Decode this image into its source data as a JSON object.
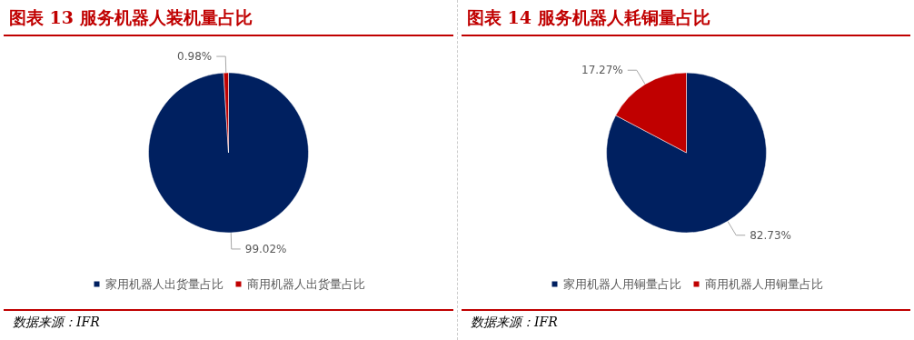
{
  "chart_data": [
    {
      "type": "pie",
      "title": "图表 13 服务机器人装机量占比",
      "categories": [
        "家用机器人出货量占比",
        "商用机器人出货量占比"
      ],
      "values": [
        99.02,
        0.98
      ],
      "colors": [
        "#002060",
        "#c00000"
      ],
      "value_labels": [
        "99.02%",
        "0.98%"
      ],
      "legend": "bottom",
      "annotations": [
        "数据来源：IFR"
      ]
    },
    {
      "type": "pie",
      "title": "图表 14 服务机器人耗铜量占比",
      "categories": [
        "家用机器人用铜量占比",
        "商用机器人用铜量占比"
      ],
      "values": [
        82.73,
        17.27
      ],
      "colors": [
        "#002060",
        "#c00000"
      ],
      "value_labels": [
        "82.73%",
        "17.27%"
      ],
      "legend": "bottom",
      "annotations": [
        "数据来源：IFR"
      ]
    }
  ]
}
